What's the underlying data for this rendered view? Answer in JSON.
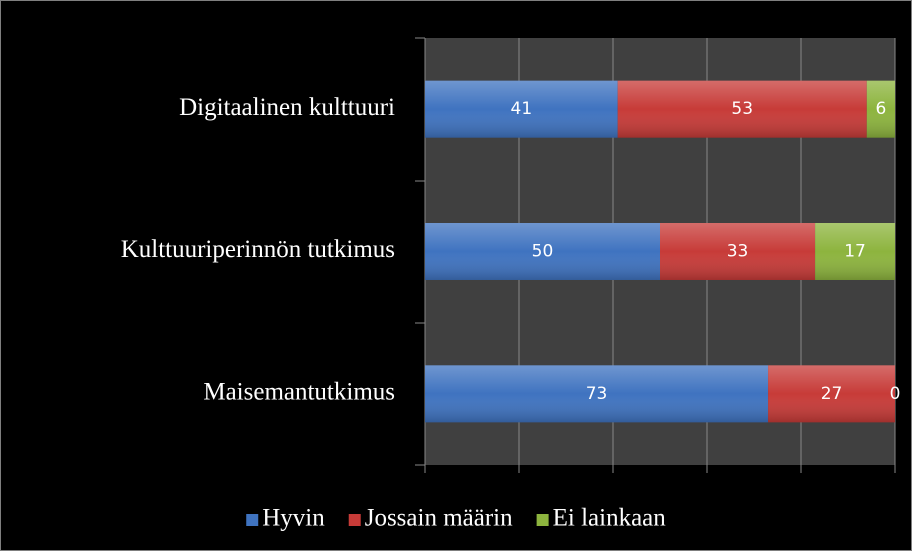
{
  "chart_data": {
    "type": "stacked_bar_horizontal",
    "categories": [
      "Digitaalinen kulttuuri",
      "Kulttuuriperinnön tutkimus",
      "Maisemantutkimus"
    ],
    "series": [
      {
        "name": "Hyvin",
        "color": "#3f73c0",
        "values": [
          41,
          50,
          73
        ]
      },
      {
        "name": "Jossain määrin",
        "color": "#c73b38",
        "values": [
          53,
          33,
          27
        ]
      },
      {
        "name": "Ei lainkaan",
        "color": "#8db43e",
        "values": [
          6,
          17,
          0
        ]
      }
    ],
    "xlim": [
      0,
      100
    ],
    "xticks": [
      0,
      20,
      40,
      60,
      80,
      100
    ],
    "grid": true,
    "legend": "bottom"
  }
}
